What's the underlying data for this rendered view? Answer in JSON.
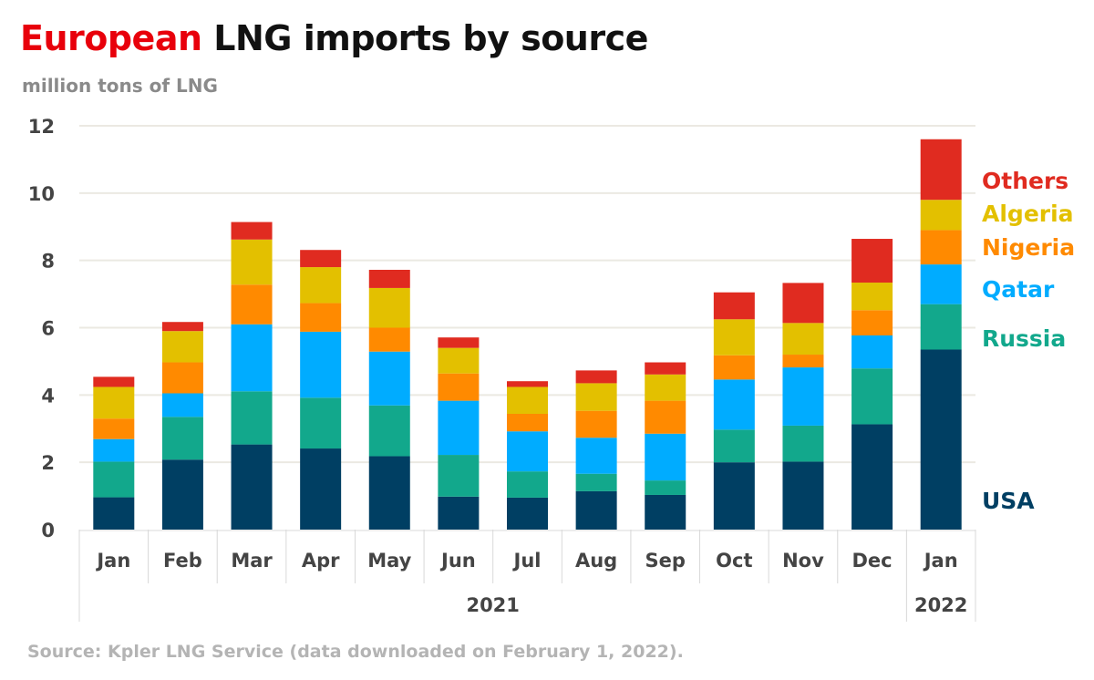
{
  "title_highlight": "European",
  "title_rest": " LNG imports by source",
  "subtitle": "million tons of LNG",
  "source": "Source: Kpler LNG Service (data downloaded on February 1, 2022).",
  "chart_data": {
    "type": "bar",
    "stacked": true,
    "title": "European LNG imports by source",
    "ylabel": "million tons of LNG",
    "ylim": [
      0,
      12
    ],
    "yticks": [
      0,
      2,
      4,
      6,
      8,
      10,
      12
    ],
    "grid": true,
    "legend_placement": "right (direct labels)",
    "categories": [
      "Jan",
      "Feb",
      "Mar",
      "Apr",
      "May",
      "Jun",
      "Jul",
      "Aug",
      "Sep",
      "Oct",
      "Nov",
      "Dec",
      "Jan"
    ],
    "groups": [
      {
        "label": "2021",
        "count": 12
      },
      {
        "label": "2022",
        "count": 1
      }
    ],
    "series": [
      {
        "name": "USA",
        "color": "#003f63",
        "values": [
          0.96,
          2.08,
          2.53,
          2.41,
          2.18,
          0.98,
          0.95,
          1.14,
          1.03,
          2.0,
          2.02,
          3.13,
          5.35
        ]
      },
      {
        "name": "Russia",
        "color": "#12a88c",
        "values": [
          1.06,
          1.27,
          1.58,
          1.51,
          1.51,
          1.24,
          0.78,
          0.52,
          0.43,
          0.97,
          1.07,
          1.66,
          1.35
        ]
      },
      {
        "name": "Qatar",
        "color": "#00acff",
        "values": [
          0.67,
          0.7,
          1.99,
          1.96,
          1.6,
          1.61,
          1.19,
          1.07,
          1.39,
          1.49,
          1.73,
          0.98,
          1.18
        ]
      },
      {
        "name": "Nigeria",
        "color": "#ff8a00",
        "values": [
          0.61,
          0.92,
          1.18,
          0.85,
          0.71,
          0.81,
          0.52,
          0.8,
          0.98,
          0.72,
          0.38,
          0.75,
          1.02
        ]
      },
      {
        "name": "Algeria",
        "color": "#e3c000",
        "values": [
          0.94,
          0.93,
          1.34,
          1.07,
          1.18,
          0.76,
          0.8,
          0.82,
          0.78,
          1.07,
          0.94,
          0.82,
          0.9
        ]
      },
      {
        "name": "Others",
        "color": "#e02b20",
        "values": [
          0.3,
          0.27,
          0.52,
          0.51,
          0.54,
          0.31,
          0.17,
          0.38,
          0.36,
          0.8,
          1.19,
          1.3,
          1.8
        ]
      }
    ]
  }
}
